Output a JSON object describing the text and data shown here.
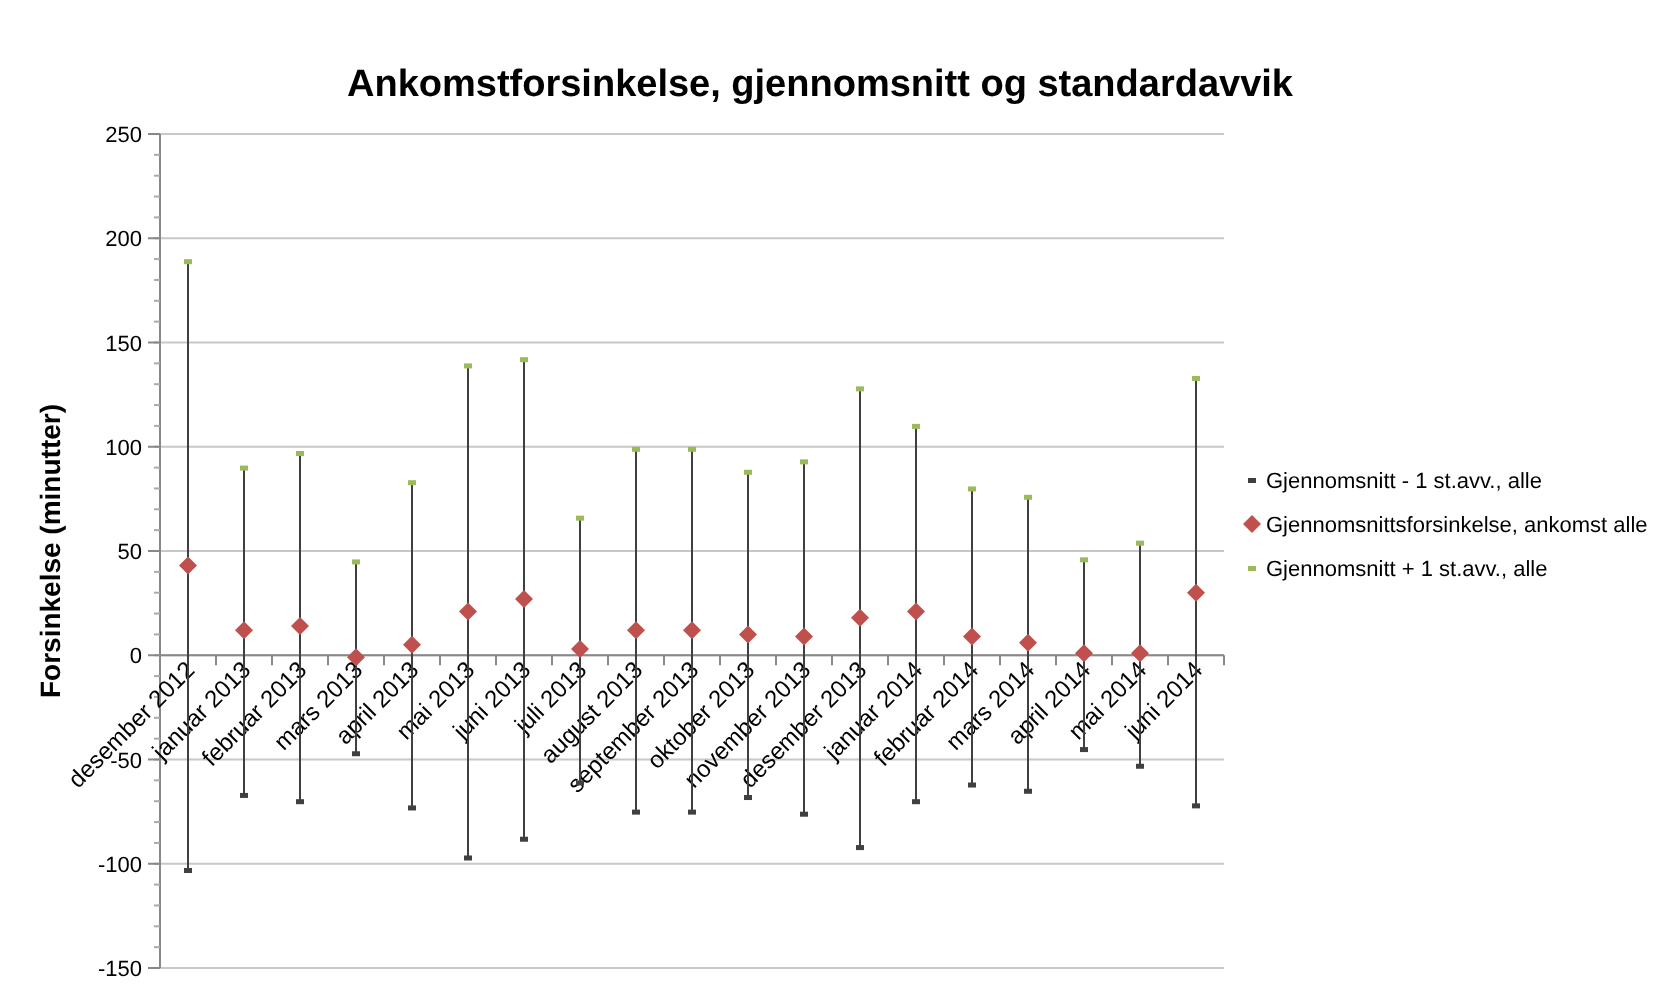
{
  "chart_data": {
    "type": "scatter",
    "title": "Ankomstforsinkelse, gjennomsnitt og standardavvik",
    "ylabel": "Forsinkelse (minutter)",
    "categories": [
      "desember 2012",
      "januar 2013",
      "februar 2013",
      "mars 2013",
      "april 2013",
      "mai 2013",
      "juni 2013",
      "juli 2013",
      "august 2013",
      "september 2013",
      "oktober 2013",
      "november 2013",
      "desember 2013",
      "januar 2014",
      "februar 2014",
      "mars 2014",
      "april 2014",
      "mai 2014",
      "juni 2014"
    ],
    "series": [
      {
        "name": "Gjennomsnitt - 1 st.avv., alle",
        "color": "#404040",
        "marker": "square",
        "values": [
          -103,
          -67,
          -70,
          -47,
          -73,
          -97,
          -88,
          -61,
          -75,
          -75,
          -68,
          -76,
          -92,
          -70,
          -62,
          -65,
          -45,
          -53,
          -72
        ]
      },
      {
        "name": "Gjennomsnittsforsinkelse, ankomst alle",
        "color": "#c0504d",
        "marker": "diamond",
        "values": [
          43,
          12,
          14,
          -1,
          5,
          21,
          27,
          3,
          12,
          12,
          10,
          9,
          18,
          21,
          9,
          6,
          1,
          1,
          30
        ]
      },
      {
        "name": "Gjennomsnitt + 1 st.avv., alle",
        "color": "#9bbb59",
        "marker": "square",
        "values": [
          189,
          90,
          97,
          45,
          83,
          139,
          142,
          66,
          99,
          99,
          88,
          93,
          128,
          110,
          80,
          76,
          46,
          54,
          133
        ]
      }
    ],
    "ylim": [
      -150,
      250
    ],
    "yticks": [
      -150,
      -100,
      -50,
      0,
      50,
      100,
      150,
      200,
      250
    ],
    "grid": "y",
    "legend": "right"
  }
}
